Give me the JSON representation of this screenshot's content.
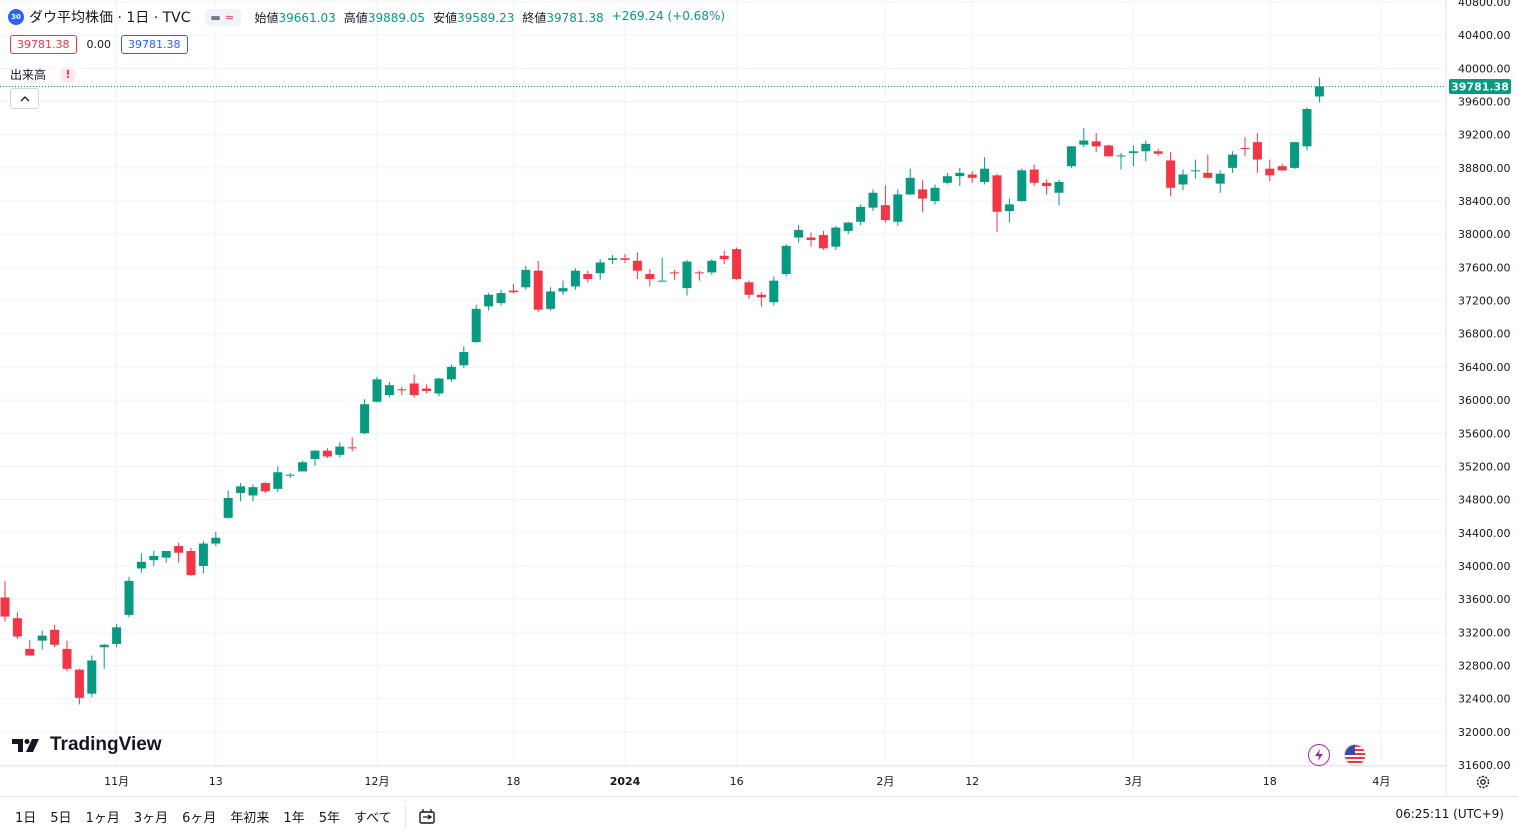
{
  "header": {
    "symbol_badge": "30",
    "title": "ダウ平均株価 · 1日 · TVC",
    "ohlc": [
      {
        "label": "始値",
        "value": "39661.03"
      },
      {
        "label": "高値",
        "value": "39889.05"
      },
      {
        "label": "安値",
        "value": "39589.23"
      },
      {
        "label": "終値",
        "value": "39781.38"
      }
    ],
    "change": "+269.24 (+0.68%)"
  },
  "trade": {
    "sell": "39781.38",
    "spread": "0.00",
    "buy": "39781.38"
  },
  "volume_label": "出来高",
  "warn_symbol": "!",
  "logo_text": "TradingView",
  "timeframes": [
    "1日",
    "5日",
    "1ヶ月",
    "3ヶ月",
    "6ヶ月",
    "年初来",
    "1年",
    "5年",
    "すべて"
  ],
  "clock": "06:25:11 (UTC+9)",
  "colors": {
    "up": "#089981",
    "down": "#f23645",
    "last_price": "#089981",
    "grid": "#f0f3fa"
  },
  "icons": {
    "collapse": "chevron-up-icon",
    "replay": "replay-icon",
    "settings": "gear-icon",
    "lightning": "lightning-icon",
    "flag": "us-flag-icon"
  },
  "chart_data": {
    "type": "candlestick",
    "y_range": [
      31600,
      40800
    ],
    "y_ticks": [
      "40800.00",
      "40400.00",
      "40000.00",
      "39600.00",
      "39200.00",
      "38800.00",
      "38400.00",
      "38000.00",
      "37600.00",
      "37200.00",
      "36800.00",
      "36400.00",
      "36000.00",
      "35600.00",
      "35200.00",
      "34800.00",
      "34400.00",
      "34000.00",
      "33600.00",
      "33200.00",
      "32800.00",
      "32400.00",
      "32000.00",
      "31600.00"
    ],
    "x_labels": [
      {
        "label": "11月",
        "index": 9
      },
      {
        "label": "13",
        "index": 17
      },
      {
        "label": "12月",
        "index": 30
      },
      {
        "label": "18",
        "index": 41
      },
      {
        "label": "2024",
        "index": 50
      },
      {
        "label": "16",
        "index": 59
      },
      {
        "label": "2月",
        "index": 71
      },
      {
        "label": "12",
        "index": 78
      },
      {
        "label": "3月",
        "index": 91
      },
      {
        "label": "18",
        "index": 102
      },
      {
        "label": "4月",
        "index": 111
      }
    ],
    "last_price": "39781.38",
    "candles": [
      {
        "o": 33620,
        "h": 33820,
        "l": 33330,
        "c": 33390
      },
      {
        "o": 33370,
        "h": 33440,
        "l": 33120,
        "c": 33150
      },
      {
        "o": 33000,
        "h": 33110,
        "l": 32920,
        "c": 32920
      },
      {
        "o": 33100,
        "h": 33220,
        "l": 32990,
        "c": 33160
      },
      {
        "o": 33230,
        "h": 33290,
        "l": 33020,
        "c": 33050
      },
      {
        "o": 33000,
        "h": 33100,
        "l": 32730,
        "c": 32760
      },
      {
        "o": 32750,
        "h": 32760,
        "l": 32330,
        "c": 32410
      },
      {
        "o": 32460,
        "h": 32920,
        "l": 32420,
        "c": 32860
      },
      {
        "o": 33020,
        "h": 33060,
        "l": 32760,
        "c": 33050
      },
      {
        "o": 33060,
        "h": 33300,
        "l": 33020,
        "c": 33260
      },
      {
        "o": 33410,
        "h": 33870,
        "l": 33380,
        "c": 33820
      },
      {
        "o": 33970,
        "h": 34150,
        "l": 33920,
        "c": 34050
      },
      {
        "o": 34070,
        "h": 34180,
        "l": 34000,
        "c": 34120
      },
      {
        "o": 34100,
        "h": 34180,
        "l": 34040,
        "c": 34180
      },
      {
        "o": 34240,
        "h": 34280,
        "l": 34040,
        "c": 34160
      },
      {
        "o": 34180,
        "h": 34220,
        "l": 33880,
        "c": 33890
      },
      {
        "o": 34000,
        "h": 34300,
        "l": 33910,
        "c": 34270
      },
      {
        "o": 34270,
        "h": 34410,
        "l": 34240,
        "c": 34340
      },
      {
        "o": 34580,
        "h": 34910,
        "l": 34570,
        "c": 34820
      },
      {
        "o": 34880,
        "h": 35000,
        "l": 34780,
        "c": 34960
      },
      {
        "o": 34850,
        "h": 34980,
        "l": 34780,
        "c": 34950
      },
      {
        "o": 35000,
        "h": 35010,
        "l": 34880,
        "c": 34900
      },
      {
        "o": 34930,
        "h": 35200,
        "l": 34890,
        "c": 35130
      },
      {
        "o": 35090,
        "h": 35120,
        "l": 35060,
        "c": 35100
      },
      {
        "o": 35140,
        "h": 35270,
        "l": 35140,
        "c": 35250
      },
      {
        "o": 35290,
        "h": 35400,
        "l": 35210,
        "c": 35390
      },
      {
        "o": 35390,
        "h": 35420,
        "l": 35300,
        "c": 35320
      },
      {
        "o": 35340,
        "h": 35490,
        "l": 35310,
        "c": 35440
      },
      {
        "o": 35430,
        "h": 35550,
        "l": 35380,
        "c": 35420
      },
      {
        "o": 35600,
        "h": 36010,
        "l": 35590,
        "c": 35950
      },
      {
        "o": 35980,
        "h": 36280,
        "l": 35970,
        "c": 36250
      },
      {
        "o": 36060,
        "h": 36220,
        "l": 36030,
        "c": 36180
      },
      {
        "o": 36130,
        "h": 36160,
        "l": 36060,
        "c": 36120
      },
      {
        "o": 36200,
        "h": 36310,
        "l": 36030,
        "c": 36060
      },
      {
        "o": 36140,
        "h": 36190,
        "l": 36080,
        "c": 36110
      },
      {
        "o": 36080,
        "h": 36270,
        "l": 36050,
        "c": 36260
      },
      {
        "o": 36250,
        "h": 36430,
        "l": 36220,
        "c": 36400
      },
      {
        "o": 36420,
        "h": 36650,
        "l": 36390,
        "c": 36580
      },
      {
        "o": 36700,
        "h": 37150,
        "l": 36690,
        "c": 37100
      },
      {
        "o": 37130,
        "h": 37290,
        "l": 37080,
        "c": 37270
      },
      {
        "o": 37170,
        "h": 37330,
        "l": 37140,
        "c": 37290
      },
      {
        "o": 37320,
        "h": 37400,
        "l": 37290,
        "c": 37300
      },
      {
        "o": 37360,
        "h": 37620,
        "l": 37330,
        "c": 37570
      },
      {
        "o": 37560,
        "h": 37680,
        "l": 37060,
        "c": 37090
      },
      {
        "o": 37100,
        "h": 37360,
        "l": 37080,
        "c": 37310
      },
      {
        "o": 37310,
        "h": 37440,
        "l": 37270,
        "c": 37350
      },
      {
        "o": 37370,
        "h": 37590,
        "l": 37330,
        "c": 37560
      },
      {
        "o": 37520,
        "h": 37560,
        "l": 37420,
        "c": 37460
      },
      {
        "o": 37530,
        "h": 37700,
        "l": 37450,
        "c": 37660
      },
      {
        "o": 37690,
        "h": 37750,
        "l": 37640,
        "c": 37710
      },
      {
        "o": 37710,
        "h": 37760,
        "l": 37650,
        "c": 37690
      },
      {
        "o": 37680,
        "h": 37780,
        "l": 37460,
        "c": 37560
      },
      {
        "o": 37520,
        "h": 37580,
        "l": 37370,
        "c": 37460
      },
      {
        "o": 37440,
        "h": 37720,
        "l": 37430,
        "c": 37440
      },
      {
        "o": 37540,
        "h": 37570,
        "l": 37450,
        "c": 37530
      },
      {
        "o": 37350,
        "h": 37690,
        "l": 37260,
        "c": 37670
      },
      {
        "o": 37540,
        "h": 37560,
        "l": 37440,
        "c": 37530
      },
      {
        "o": 37540,
        "h": 37700,
        "l": 37510,
        "c": 37680
      },
      {
        "o": 37740,
        "h": 37800,
        "l": 37640,
        "c": 37700
      },
      {
        "o": 37820,
        "h": 37840,
        "l": 37450,
        "c": 37460
      },
      {
        "o": 37420,
        "h": 37440,
        "l": 37220,
        "c": 37270
      },
      {
        "o": 37270,
        "h": 37300,
        "l": 37130,
        "c": 37240
      },
      {
        "o": 37180,
        "h": 37490,
        "l": 37140,
        "c": 37440
      },
      {
        "o": 37520,
        "h": 37880,
        "l": 37490,
        "c": 37860
      },
      {
        "o": 37960,
        "h": 38110,
        "l": 37900,
        "c": 38050
      },
      {
        "o": 37960,
        "h": 38020,
        "l": 37850,
        "c": 37930
      },
      {
        "o": 37990,
        "h": 38040,
        "l": 37810,
        "c": 37830
      },
      {
        "o": 37850,
        "h": 38100,
        "l": 37810,
        "c": 38080
      },
      {
        "o": 38040,
        "h": 38150,
        "l": 38000,
        "c": 38140
      },
      {
        "o": 38150,
        "h": 38360,
        "l": 38110,
        "c": 38330
      },
      {
        "o": 38320,
        "h": 38540,
        "l": 38280,
        "c": 38500
      },
      {
        "o": 38350,
        "h": 38590,
        "l": 38140,
        "c": 38170
      },
      {
        "o": 38150,
        "h": 38540,
        "l": 38100,
        "c": 38480
      },
      {
        "o": 38480,
        "h": 38790,
        "l": 38470,
        "c": 38680
      },
      {
        "o": 38540,
        "h": 38650,
        "l": 38270,
        "c": 38430
      },
      {
        "o": 38400,
        "h": 38600,
        "l": 38360,
        "c": 38560
      },
      {
        "o": 38620,
        "h": 38740,
        "l": 38600,
        "c": 38700
      },
      {
        "o": 38700,
        "h": 38800,
        "l": 38580,
        "c": 38740
      },
      {
        "o": 38720,
        "h": 38760,
        "l": 38620,
        "c": 38680
      },
      {
        "o": 38630,
        "h": 38930,
        "l": 38600,
        "c": 38790
      },
      {
        "o": 38710,
        "h": 38730,
        "l": 38030,
        "c": 38270
      },
      {
        "o": 38280,
        "h": 38430,
        "l": 38140,
        "c": 38360
      },
      {
        "o": 38400,
        "h": 38790,
        "l": 38390,
        "c": 38770
      },
      {
        "o": 38780,
        "h": 38840,
        "l": 38580,
        "c": 38620
      },
      {
        "o": 38620,
        "h": 38660,
        "l": 38480,
        "c": 38580
      },
      {
        "o": 38500,
        "h": 38660,
        "l": 38350,
        "c": 38630
      },
      {
        "o": 38820,
        "h": 39060,
        "l": 38800,
        "c": 39060
      },
      {
        "o": 39080,
        "h": 39280,
        "l": 39050,
        "c": 39130
      },
      {
        "o": 39120,
        "h": 39220,
        "l": 38990,
        "c": 39060
      },
      {
        "o": 39070,
        "h": 39080,
        "l": 38940,
        "c": 38940
      },
      {
        "o": 38950,
        "h": 38980,
        "l": 38780,
        "c": 38950
      },
      {
        "o": 38980,
        "h": 39070,
        "l": 38820,
        "c": 39000
      },
      {
        "o": 39000,
        "h": 39130,
        "l": 38880,
        "c": 39090
      },
      {
        "o": 39000,
        "h": 39030,
        "l": 38940,
        "c": 38970
      },
      {
        "o": 38890,
        "h": 38990,
        "l": 38460,
        "c": 38560
      },
      {
        "o": 38600,
        "h": 38780,
        "l": 38530,
        "c": 38720
      },
      {
        "o": 38760,
        "h": 38900,
        "l": 38670,
        "c": 38770
      },
      {
        "o": 38740,
        "h": 38960,
        "l": 38680,
        "c": 38680
      },
      {
        "o": 38610,
        "h": 38770,
        "l": 38500,
        "c": 38730
      },
      {
        "o": 38800,
        "h": 39000,
        "l": 38740,
        "c": 38960
      },
      {
        "o": 39040,
        "h": 39170,
        "l": 38940,
        "c": 39030
      },
      {
        "o": 39110,
        "h": 39220,
        "l": 38740,
        "c": 38900
      },
      {
        "o": 38790,
        "h": 38900,
        "l": 38640,
        "c": 38710
      },
      {
        "o": 38820,
        "h": 38850,
        "l": 38760,
        "c": 38770
      },
      {
        "o": 38800,
        "h": 39110,
        "l": 38790,
        "c": 39110
      },
      {
        "o": 39060,
        "h": 39530,
        "l": 39010,
        "c": 39510
      },
      {
        "o": 39661.03,
        "h": 39889.05,
        "l": 39589.23,
        "c": 39781.38
      }
    ]
  }
}
